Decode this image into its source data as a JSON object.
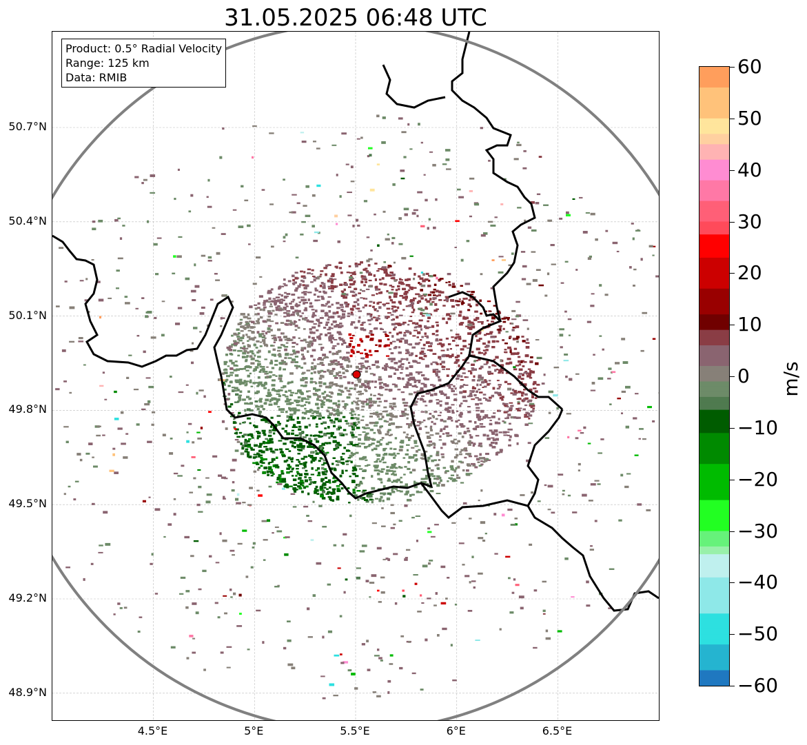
{
  "title": "31.05.2025 06:48 UTC",
  "info": {
    "product": "Product: 0.5° Radial Velocity",
    "range": "Range: 125 km",
    "data": "Data: RMIB"
  },
  "axes": {
    "y_ticks": [
      {
        "label": "50.7°N",
        "lat": 50.7
      },
      {
        "label": "50.4°N",
        "lat": 50.4
      },
      {
        "label": "50.1°N",
        "lat": 50.1
      },
      {
        "label": "49.8°N",
        "lat": 49.8
      },
      {
        "label": "49.5°N",
        "lat": 49.5
      },
      {
        "label": "49.2°N",
        "lat": 49.2
      },
      {
        "label": "48.9°N",
        "lat": 48.9
      }
    ],
    "x_ticks": [
      {
        "label": "4.5°E",
        "lon": 4.5
      },
      {
        "label": "5°E",
        "lon": 5.0
      },
      {
        "label": "5.5°E",
        "lon": 5.5
      },
      {
        "label": "6°E",
        "lon": 6.0
      },
      {
        "label": "6.5°E",
        "lon": 6.5
      }
    ],
    "lon_range": [
      4.0,
      7.0
    ],
    "lat_range": [
      48.8,
      51.0
    ]
  },
  "radar_site": {
    "lon": 5.505,
    "lat": 49.914
  },
  "colorbar": {
    "unit": "m/s",
    "min": -60,
    "max": 60,
    "ticks": [
      "60",
      "50",
      "40",
      "30",
      "20",
      "10",
      "0",
      "−10",
      "−20",
      "−30",
      "−40",
      "−50",
      "−60"
    ],
    "tick_values": [
      60,
      50,
      40,
      30,
      20,
      10,
      0,
      -10,
      -20,
      -30,
      -40,
      -50,
      -60
    ],
    "stops": [
      {
        "v": 60,
        "c": "#ff9e5c"
      },
      {
        "v": 52,
        "c": "#ffc27a"
      },
      {
        "v": 48,
        "c": "#ffe59c"
      },
      {
        "v": 46,
        "c": "#ffd0a0"
      },
      {
        "v": 44,
        "c": "#ffb3b3"
      },
      {
        "v": 40,
        "c": "#ff8cd2"
      },
      {
        "v": 36,
        "c": "#ff78a6"
      },
      {
        "v": 32,
        "c": "#ff5f77"
      },
      {
        "v": 28,
        "c": "#ff4a5a"
      },
      {
        "v": 27,
        "c": "#ff0000"
      },
      {
        "v": 20,
        "c": "#cc0000"
      },
      {
        "v": 14,
        "c": "#990000"
      },
      {
        "v": 10,
        "c": "#700000"
      },
      {
        "v": 8,
        "c": "#8a3d45"
      },
      {
        "v": 4,
        "c": "#8a6470"
      },
      {
        "v": 0,
        "c": "#878078"
      },
      {
        "v": -2,
        "c": "#6d8b68"
      },
      {
        "v": -6,
        "c": "#4f7a4f"
      },
      {
        "v": -7,
        "c": "#005c00"
      },
      {
        "v": -14,
        "c": "#008a00"
      },
      {
        "v": -20,
        "c": "#00bb00"
      },
      {
        "v": -28,
        "c": "#22ff22"
      },
      {
        "v": -32,
        "c": "#66f27a"
      },
      {
        "v": -34,
        "c": "#99f0aa"
      },
      {
        "v": -35,
        "c": "#bff0ee"
      },
      {
        "v": -42,
        "c": "#8ee8e8"
      },
      {
        "v": -50,
        "c": "#2de0e0"
      },
      {
        "v": -54,
        "c": "#25b4d0"
      },
      {
        "v": -60,
        "c": "#1f78c0"
      }
    ]
  },
  "colors": {
    "range_ring": "#808080",
    "border": "#000000",
    "grid": "#bbbbbb",
    "site_marker": "#dd0000"
  }
}
